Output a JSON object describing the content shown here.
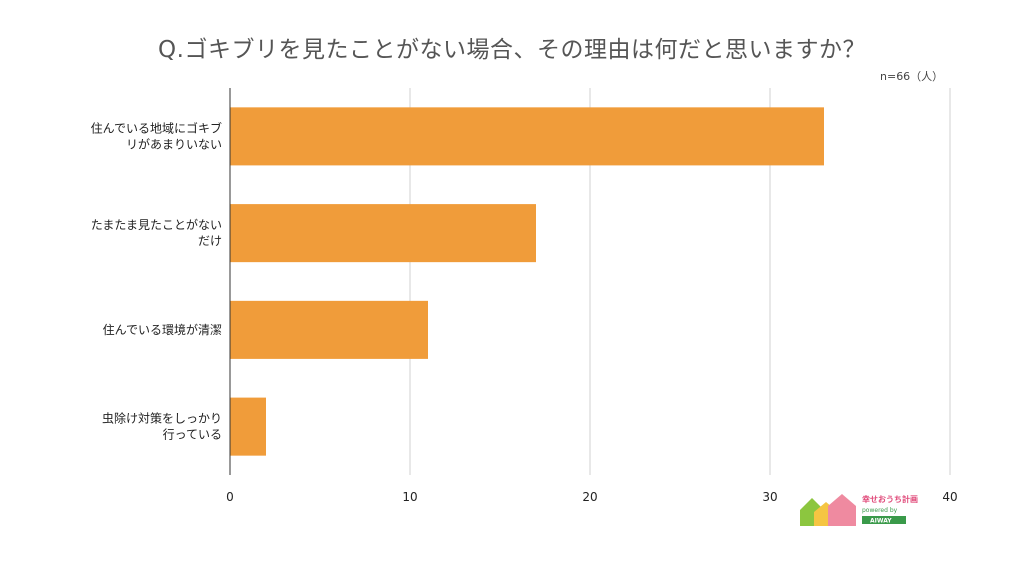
{
  "chart_data": {
    "type": "bar",
    "orientation": "horizontal",
    "title": "Q.ゴキブリを見たことがない場合、その理由は何だと思いますか？",
    "note": "n=66（人）",
    "categories": [
      [
        "住んでいる地域にゴキブ",
        "リがあまりいない"
      ],
      [
        "たまたま見たことがない",
        "だけ"
      ],
      [
        "住んでいる環境が清潔"
      ],
      [
        "虫除け対策をしっかり",
        "行っている"
      ]
    ],
    "values": [
      33,
      17,
      11,
      2
    ],
    "xlim": [
      0,
      40
    ],
    "xticks": [
      "0",
      "10",
      "20",
      "30",
      "40"
    ],
    "grid": true,
    "bar_color": "#f09c3a"
  },
  "logo": {
    "name": "幸せおうち計画",
    "sub": "powered by",
    "brand": "AIWAY"
  }
}
